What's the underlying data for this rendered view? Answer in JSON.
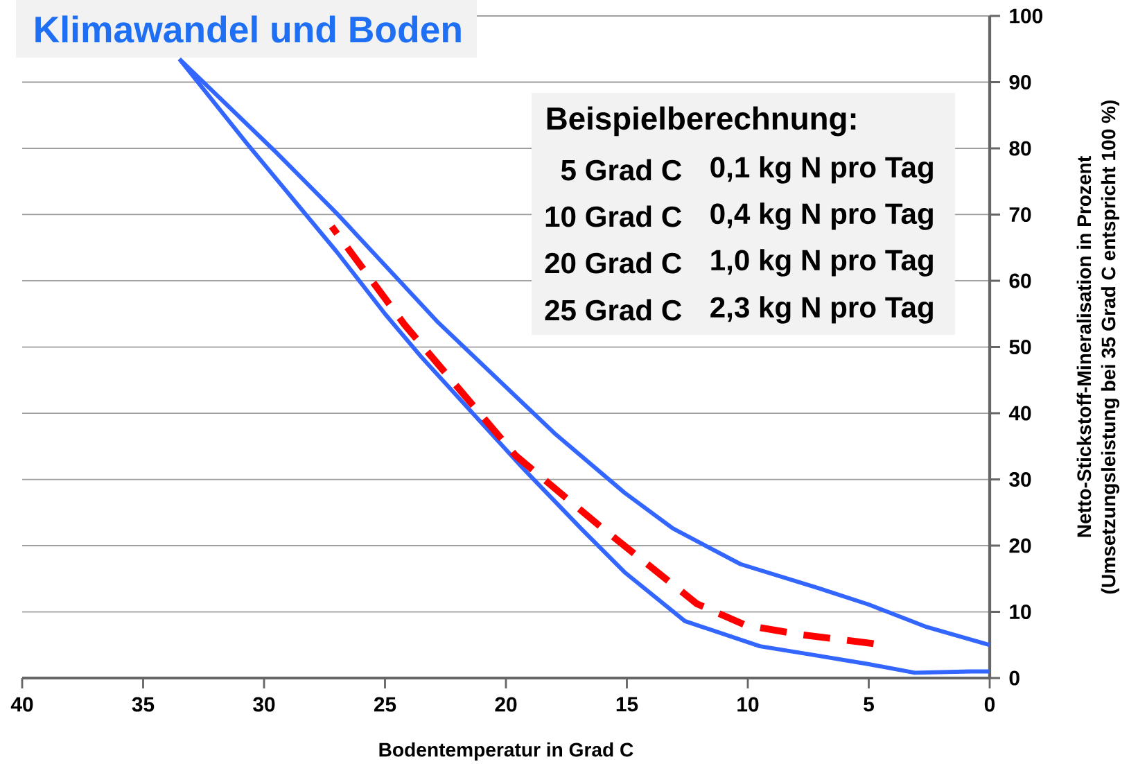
{
  "chart_data": {
    "type": "line",
    "title": "Klimawandel und Boden",
    "xlabel": "Bodentemperatur in Grad C",
    "ylabel": "Netto-Stickstoff-Mineralisation in Prozent",
    "annotations": [
      "Beispielberechnung:",
      "5 Grad C",
      "0,1 kg N pro Tag",
      "10 Grad C",
      "0,4 kg N pro Tag",
      "20 Grad C",
      "1,0 kg N pro Tag",
      "25 Grad C",
      "2,3 kg N pro Tag",
      "(Umsetzungsleistung bei 35 Grad C entspricht 100 %)"
    ],
    "series": [
      {
        "color": "#3366ff",
        "line_style": "solid",
        "x": [
          33.5,
          30.7,
          27,
          25,
          23.5,
          19.3,
          16.9,
          15.1,
          12.6,
          9.5,
          7.3,
          5,
          3.1,
          0.8,
          0
        ],
        "values": [
          93.5,
          80.7,
          64.4,
          55,
          48.5,
          31.7,
          22.6,
          16,
          8.6,
          4.8,
          3.5,
          2.1,
          0.8,
          1,
          1
        ]
      },
      {
        "color": "#3366ff",
        "line_style": "solid",
        "x": [
          33.5,
          29.5,
          27,
          22.8,
          18,
          15.1,
          13.1,
          10.3,
          7.1,
          5,
          2.6,
          0
        ],
        "values": [
          93.5,
          79.4,
          70.2,
          53.7,
          37,
          28,
          22.6,
          17.2,
          13.6,
          11.1,
          7.7,
          5
        ]
      },
      {
        "color": "#ff0000",
        "line_style": "dashed",
        "x": [
          4.8,
          7.7,
          10.1,
          12.1,
          16.1,
          19.6,
          24.2,
          27.2
        ],
        "values": [
          5.2,
          6.5,
          8.0,
          11.2,
          22.9,
          33.6,
          53.4,
          68.2
        ]
      }
    ],
    "xlim": [
      40,
      0
    ],
    "xticks": [
      40,
      35,
      30,
      25,
      20,
      15,
      10,
      5,
      0
    ],
    "ylim": [
      0,
      100
    ],
    "yticks": [
      0,
      10,
      20,
      30,
      40,
      50,
      60,
      70,
      80,
      90,
      100
    ],
    "grid": "y",
    "marker": "none"
  }
}
